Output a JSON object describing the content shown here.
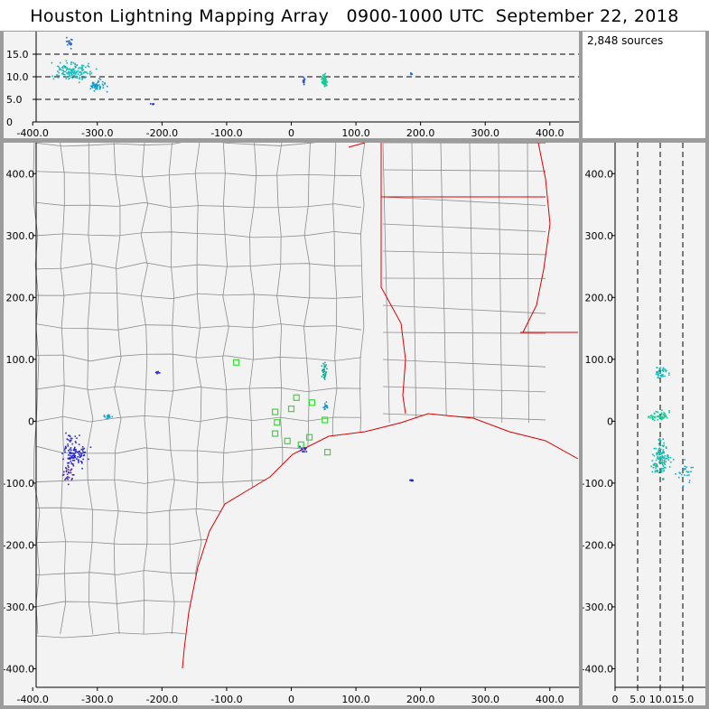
{
  "header": {
    "title": "Houston Lightning Mapping Array   0900-1000 UTC  September 22, 2018"
  },
  "stats": {
    "source_count": "2,848 sources"
  },
  "colors": {
    "background": "#f3f3f3",
    "frame": "#9c9c9c",
    "state_border": "#dd0000",
    "coast": "#dd0000",
    "county_lines": "#8c8c8c",
    "station_marker": "#33dd33",
    "source_early": "#2222cc",
    "source_late": "#11cccc"
  },
  "chart_data": [
    {
      "id": "altitude-vs-east-west",
      "type": "scatter",
      "x_ticks": [
        "-400.0",
        "-300.0",
        "-200.0",
        "-100.0",
        "0",
        "100.0",
        "200.0",
        "300.0",
        "400.0"
      ],
      "y_ticks": [
        "0",
        "5.0",
        "10.0",
        "15.0"
      ],
      "xlim": [
        -445,
        445
      ],
      "ylim": [
        0,
        20
      ],
      "dashed_gridlines_y": [
        5,
        10,
        15
      ],
      "clusters": [
        {
          "x": -340,
          "y": 11.5,
          "spread_x": 25,
          "spread_y": 1.6,
          "count": 140,
          "color": "#11bbbb"
        },
        {
          "x": -300,
          "y": 8.0,
          "spread_x": 10,
          "spread_y": 1.2,
          "count": 50,
          "color": "#1199cc"
        },
        {
          "x": -345,
          "y": 17.5,
          "spread_x": 4,
          "spread_y": 1.2,
          "count": 15,
          "color": "#2266cc"
        },
        {
          "x": -215,
          "y": 4.2,
          "spread_x": 3,
          "spread_y": 0.5,
          "count": 4,
          "color": "#2222cc"
        },
        {
          "x": 50,
          "y": 9.5,
          "spread_x": 3,
          "spread_y": 1.2,
          "count": 70,
          "color": "#11cc99"
        },
        {
          "x": 18,
          "y": 9.3,
          "spread_x": 2,
          "spread_y": 1.0,
          "count": 12,
          "color": "#2255cc"
        },
        {
          "x": 185,
          "y": 10.8,
          "spread_x": 2,
          "spread_y": 0.3,
          "count": 4,
          "color": "#2266cc"
        }
      ]
    },
    {
      "id": "plan-view",
      "type": "scatter",
      "x_ticks": [
        "-400.0",
        "-300.0",
        "-200.0",
        "-100.0",
        "0",
        "100.0",
        "200.0",
        "300.0",
        "400.0"
      ],
      "y_ticks": [
        "-400.0",
        "-300.0",
        "-200.0",
        "-100.0",
        "0",
        "100.0",
        "200.0",
        "300.0",
        "400.0"
      ],
      "xlim": [
        -445,
        445
      ],
      "ylim": [
        -430,
        450
      ],
      "stations": [
        [
          -85,
          95
        ],
        [
          -25,
          15
        ],
        [
          0,
          20
        ],
        [
          8,
          38
        ],
        [
          32,
          30
        ],
        [
          -22,
          -2
        ],
        [
          -25,
          -20
        ],
        [
          -6,
          -32
        ],
        [
          28,
          -26
        ],
        [
          52,
          2
        ],
        [
          56,
          -50
        ],
        [
          15,
          -38
        ]
      ],
      "clusters": [
        {
          "x": -335,
          "y": -55,
          "spread_x": 18,
          "spread_y": 15,
          "count": 90,
          "color": "#2222cc"
        },
        {
          "x": -345,
          "y": -85,
          "spread_x": 8,
          "spread_y": 15,
          "count": 30,
          "color": "#4422aa"
        },
        {
          "x": -340,
          "y": -30,
          "spread_x": 10,
          "spread_y": 10,
          "count": 20,
          "color": "#3333cc"
        },
        {
          "x": -285,
          "y": 8,
          "spread_x": 5,
          "spread_y": 3,
          "count": 20,
          "color": "#11aacc"
        },
        {
          "x": -210,
          "y": 82,
          "spread_x": 6,
          "spread_y": 4,
          "count": 6,
          "color": "#2222cc"
        },
        {
          "x": 50,
          "y": 80,
          "spread_x": 3,
          "spread_y": 12,
          "count": 35,
          "color": "#11aa99"
        },
        {
          "x": 52,
          "y": 25,
          "spread_x": 3,
          "spread_y": 6,
          "count": 15,
          "color": "#1199cc"
        },
        {
          "x": 18,
          "y": -45,
          "spread_x": 4,
          "spread_y": 5,
          "count": 12,
          "color": "#2222cc"
        },
        {
          "x": 185,
          "y": -95,
          "spread_x": 3,
          "spread_y": 2,
          "count": 8,
          "color": "#2222cc"
        }
      ]
    },
    {
      "id": "north-south-vs-altitude",
      "type": "scatter",
      "x_ticks": [
        "0",
        "5.0",
        "10.0",
        "15.0"
      ],
      "y_ticks": [
        "-400.0",
        "-300.0",
        "-200.0",
        "-100.0",
        "0",
        "100.0",
        "200.0",
        "300.0",
        "400.0"
      ],
      "xlim": [
        0,
        20
      ],
      "ylim": [
        -430,
        450
      ],
      "dashed_gridlines_x": [
        5,
        10,
        15
      ],
      "clusters": [
        {
          "x": 10,
          "y": -60,
          "spread_x": 1.6,
          "spread_y": 25,
          "count": 120,
          "color": "#11bbaa"
        },
        {
          "x": 9.5,
          "y": 10,
          "spread_x": 1.8,
          "spread_y": 6,
          "count": 60,
          "color": "#11cc99"
        },
        {
          "x": 10,
          "y": 80,
          "spread_x": 1.2,
          "spread_y": 10,
          "count": 40,
          "color": "#11bbbb"
        },
        {
          "x": 15.5,
          "y": -80,
          "spread_x": 2,
          "spread_y": 20,
          "count": 25,
          "color": "#11aacc"
        }
      ]
    }
  ]
}
